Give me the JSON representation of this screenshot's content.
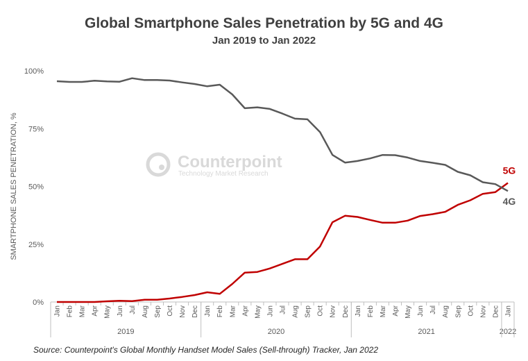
{
  "chart_data": {
    "type": "line",
    "title": "Global Smartphone Sales Penetration by 5G and 4G",
    "subtitle": "Jan 2019 to Jan 2022",
    "ylabel": "SMARTPHONE SALES PENETRATION, %",
    "ylim": [
      0,
      100
    ],
    "yticks": [
      "0%",
      "25%",
      "50%",
      "75%",
      "100%"
    ],
    "ytick_values": [
      0,
      25,
      50,
      75,
      100
    ],
    "grid": false,
    "categories": [
      "Jan",
      "Feb",
      "Mar",
      "Apr",
      "May",
      "Jun",
      "Jul",
      "Aug",
      "Sep",
      "Oct",
      "Nov",
      "Dec",
      "Jan",
      "Feb",
      "Mar",
      "Apr",
      "May",
      "Jun",
      "Jul",
      "Aug",
      "Sep",
      "Oct",
      "Nov",
      "Dec",
      "Jan",
      "Feb",
      "Mar",
      "Apr",
      "May",
      "Jun",
      "Jul",
      "Aug",
      "Sep",
      "Oct",
      "Nov",
      "Dec",
      "Jan"
    ],
    "year_groups": [
      {
        "label": "2019",
        "start": 0,
        "end": 11
      },
      {
        "label": "2020",
        "start": 12,
        "end": 23
      },
      {
        "label": "2021",
        "start": 24,
        "end": 35
      },
      {
        "label": "2022",
        "start": 36,
        "end": 36
      }
    ],
    "series": [
      {
        "name": "5G",
        "color": "#C00000",
        "values": [
          0,
          0,
          0,
          0,
          0.3,
          0.5,
          0.4,
          1,
          1,
          1.5,
          2.2,
          3,
          4.2,
          3.5,
          7.8,
          12.7,
          13,
          14.5,
          16.5,
          18.5,
          18.5,
          24,
          34.5,
          37.3,
          36.8,
          35.5,
          34.3,
          34.3,
          35.2,
          37.2,
          38,
          39,
          42,
          44,
          46.8,
          47.5,
          51.5
        ]
      },
      {
        "name": "4G",
        "color": "#595959",
        "values": [
          95.5,
          95.2,
          95.2,
          95.7,
          95.4,
          95.3,
          96.8,
          96,
          96,
          95.8,
          95,
          94.3,
          93.3,
          94,
          89.8,
          83.8,
          84.2,
          83.5,
          81.5,
          79.3,
          79,
          73.5,
          63.6,
          60.3,
          61,
          62.1,
          63.6,
          63.5,
          62.5,
          61,
          60.2,
          59.3,
          56.3,
          54.8,
          51.8,
          51,
          48
        ]
      }
    ]
  },
  "watermark": {
    "name": "Counterpoint",
    "tagline": "Technology Market Research",
    "color": "#D9D9D9"
  },
  "source": "Source: Counterpoint's Global Monthly Handset Model Sales (Sell-through) Tracker, Jan 2022",
  "colors": {
    "axis": "#BFBFBF",
    "text": "#595959",
    "title": "#404040"
  }
}
